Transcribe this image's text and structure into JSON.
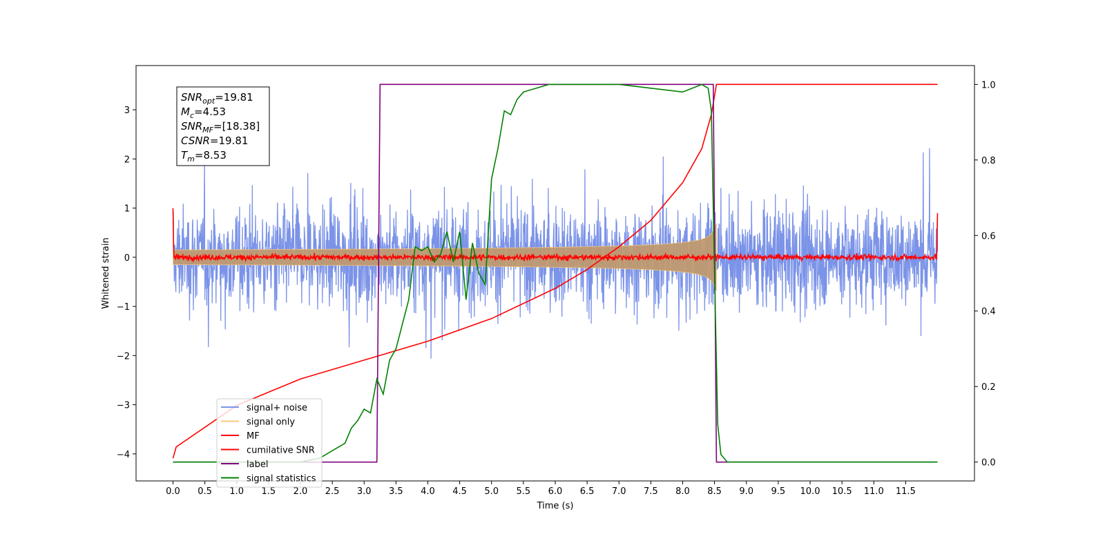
{
  "chart_data": {
    "type": "line",
    "title": "",
    "xlabel": "Time (s)",
    "ylabel_left": "Whitened strain",
    "ylabel_right": "",
    "xlim": [
      -0.58,
      12.58
    ],
    "ylim_left": [
      -4.55,
      3.9
    ],
    "ylim_right": [
      -0.05,
      1.05
    ],
    "x_ticks": [
      "0.0",
      "0.5",
      "1.0",
      "1.5",
      "2.0",
      "2.5",
      "3.0",
      "3.5",
      "4.0",
      "4.5",
      "5.0",
      "5.5",
      "6.0",
      "6.5",
      "7.0",
      "7.5",
      "8.0",
      "8.5",
      "9.0",
      "9.5",
      "10.0",
      "10.5",
      "11.0",
      "11.5"
    ],
    "y_ticks_left": [
      "3",
      "2",
      "1",
      "0",
      "−1",
      "−2",
      "−3",
      "−4"
    ],
    "y_ticks_right": [
      "1.0",
      "0.8",
      "0.6",
      "0.4",
      "0.2",
      "0.0"
    ],
    "grid": false,
    "legend_position": "lower-left",
    "info_box": {
      "lines": [
        {
          "sym": "SNR",
          "sub": "opt",
          "val": "=19.81"
        },
        {
          "sym": "M",
          "sub": "c",
          "val": "=4.53"
        },
        {
          "sym": "SNR",
          "sub": "MF",
          "val": "=[18.38]"
        },
        {
          "sym": "CSNR",
          "sub": "",
          "val": "=19.81"
        },
        {
          "sym": "T",
          "sub": "m",
          "val": "=8.53"
        }
      ]
    },
    "series": [
      {
        "name": "signal+ noise",
        "color": "#7b93e8",
        "axis": "left",
        "noise_amplitude": 1.3,
        "duration": 12.0,
        "merger_time": 8.53
      },
      {
        "name": "signal only",
        "color": "#f5c77e",
        "axis": "left",
        "envelope_start": 0.15,
        "envelope_peak": 1.1,
        "merger_time": 8.53
      },
      {
        "name": "MF",
        "color": "#ff0000",
        "axis": "left",
        "baseline": 0.0,
        "spike_start": 1.0,
        "spike_end": 0.9
      },
      {
        "name": "cumilative SNR",
        "color": "#ff0000",
        "axis": "right",
        "x": [
          0.0,
          0.05,
          1.0,
          2.0,
          3.0,
          4.0,
          5.0,
          5.5,
          6.0,
          6.5,
          7.0,
          7.5,
          8.0,
          8.3,
          8.45,
          8.53,
          12.0
        ],
        "y": [
          0.01,
          0.04,
          0.15,
          0.22,
          0.27,
          0.32,
          0.38,
          0.42,
          0.46,
          0.51,
          0.57,
          0.64,
          0.74,
          0.83,
          0.92,
          1.0,
          1.0
        ]
      },
      {
        "name": "label",
        "color": "#800080",
        "axis": "right",
        "x": [
          0.0,
          3.2,
          3.25,
          8.48,
          8.53,
          12.0
        ],
        "y": [
          0.0,
          0.0,
          1.0,
          1.0,
          0.0,
          0.0
        ]
      },
      {
        "name": "signal statistics",
        "color": "#008000",
        "axis": "right",
        "x": [
          0.0,
          2.0,
          2.3,
          2.5,
          2.7,
          2.8,
          2.9,
          3.0,
          3.1,
          3.2,
          3.3,
          3.4,
          3.5,
          3.7,
          3.8,
          3.9,
          4.0,
          4.1,
          4.2,
          4.3,
          4.4,
          4.5,
          4.6,
          4.7,
          4.8,
          4.9,
          5.0,
          5.1,
          5.2,
          5.3,
          5.4,
          5.5,
          5.7,
          5.9,
          6.2,
          7.0,
          7.5,
          8.0,
          8.3,
          8.4,
          8.45,
          8.5,
          8.55,
          8.6,
          8.65,
          8.7,
          9.0,
          12.0
        ],
        "y": [
          0.0,
          0.0,
          0.01,
          0.03,
          0.05,
          0.09,
          0.11,
          0.14,
          0.13,
          0.22,
          0.18,
          0.27,
          0.3,
          0.43,
          0.57,
          0.56,
          0.57,
          0.53,
          0.55,
          0.61,
          0.53,
          0.61,
          0.43,
          0.58,
          0.5,
          0.47,
          0.75,
          0.83,
          0.93,
          0.92,
          0.96,
          0.98,
          0.99,
          1.0,
          1.0,
          1.0,
          0.99,
          0.98,
          1.0,
          0.99,
          0.93,
          0.5,
          0.1,
          0.02,
          0.01,
          0.0,
          0.0,
          0.0
        ]
      }
    ]
  }
}
